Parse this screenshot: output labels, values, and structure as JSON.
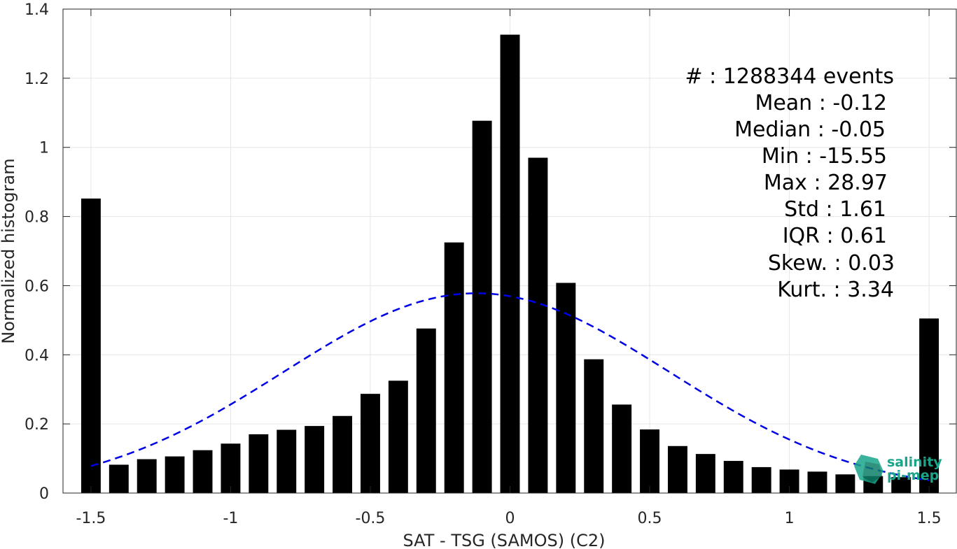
{
  "chart_data": {
    "type": "bar",
    "title": "",
    "xlabel": "SAT - TSG (SAMOS) (C2)",
    "ylabel": "Normalized histogram",
    "xlim": [
      -1.6,
      1.6
    ],
    "ylim": [
      0,
      1.4
    ],
    "grid": true,
    "x_ticks": [
      {
        "value": -1.5,
        "label": "-1.5"
      },
      {
        "value": -1.0,
        "label": "-1"
      },
      {
        "value": -0.5,
        "label": "-0.5"
      },
      {
        "value": 0.0,
        "label": "0"
      },
      {
        "value": 0.5,
        "label": "0.5"
      },
      {
        "value": 1.0,
        "label": "1"
      },
      {
        "value": 1.5,
        "label": "1.5"
      }
    ],
    "y_ticks": [
      {
        "value": 0,
        "label": "0"
      },
      {
        "value": 0.2,
        "label": "0.2"
      },
      {
        "value": 0.4,
        "label": "0.4"
      },
      {
        "value": 0.6,
        "label": "0.6"
      },
      {
        "value": 0.8,
        "label": "0.8"
      },
      {
        "value": 1.0,
        "label": "1"
      },
      {
        "value": 1.2,
        "label": "1.2"
      },
      {
        "value": 1.4,
        "label": "1.4"
      }
    ],
    "bar_width": 0.07,
    "bars": {
      "x": [
        -1.5,
        -1.4,
        -1.3,
        -1.2,
        -1.1,
        -1.0,
        -0.9,
        -0.8,
        -0.7,
        -0.6,
        -0.5,
        -0.4,
        -0.3,
        -0.2,
        -0.1,
        0.0,
        0.1,
        0.2,
        0.3,
        0.4,
        0.5,
        0.6,
        0.7,
        0.8,
        0.9,
        1.0,
        1.1,
        1.2,
        1.3,
        1.4,
        1.5
      ],
      "values": [
        0.852,
        0.082,
        0.098,
        0.106,
        0.124,
        0.143,
        0.17,
        0.183,
        0.194,
        0.223,
        0.287,
        0.325,
        0.476,
        0.725,
        1.077,
        1.326,
        0.97,
        0.608,
        0.387,
        0.256,
        0.184,
        0.136,
        0.113,
        0.093,
        0.075,
        0.068,
        0.062,
        0.054,
        0.049,
        0.046,
        0.505
      ],
      "color": "#000000"
    },
    "fit_curve": {
      "style": "dashed",
      "color": "#0000e6",
      "mean": -0.12,
      "std": 0.69,
      "peak": 0.578,
      "x_range": [
        -1.5,
        1.5
      ]
    },
    "stats": [
      "#  : 1288344 events",
      "Mean : -0.12",
      "Median : -0.05",
      "Min : -15.55",
      "Max : 28.97",
      "Std : 1.61",
      "IQR : 0.61",
      "Skew. : 0.03",
      "Kurt. : 3.34"
    ]
  },
  "logo": {
    "line1": "salinity",
    "line2": "pi-mep",
    "color": "#1aa58a"
  }
}
